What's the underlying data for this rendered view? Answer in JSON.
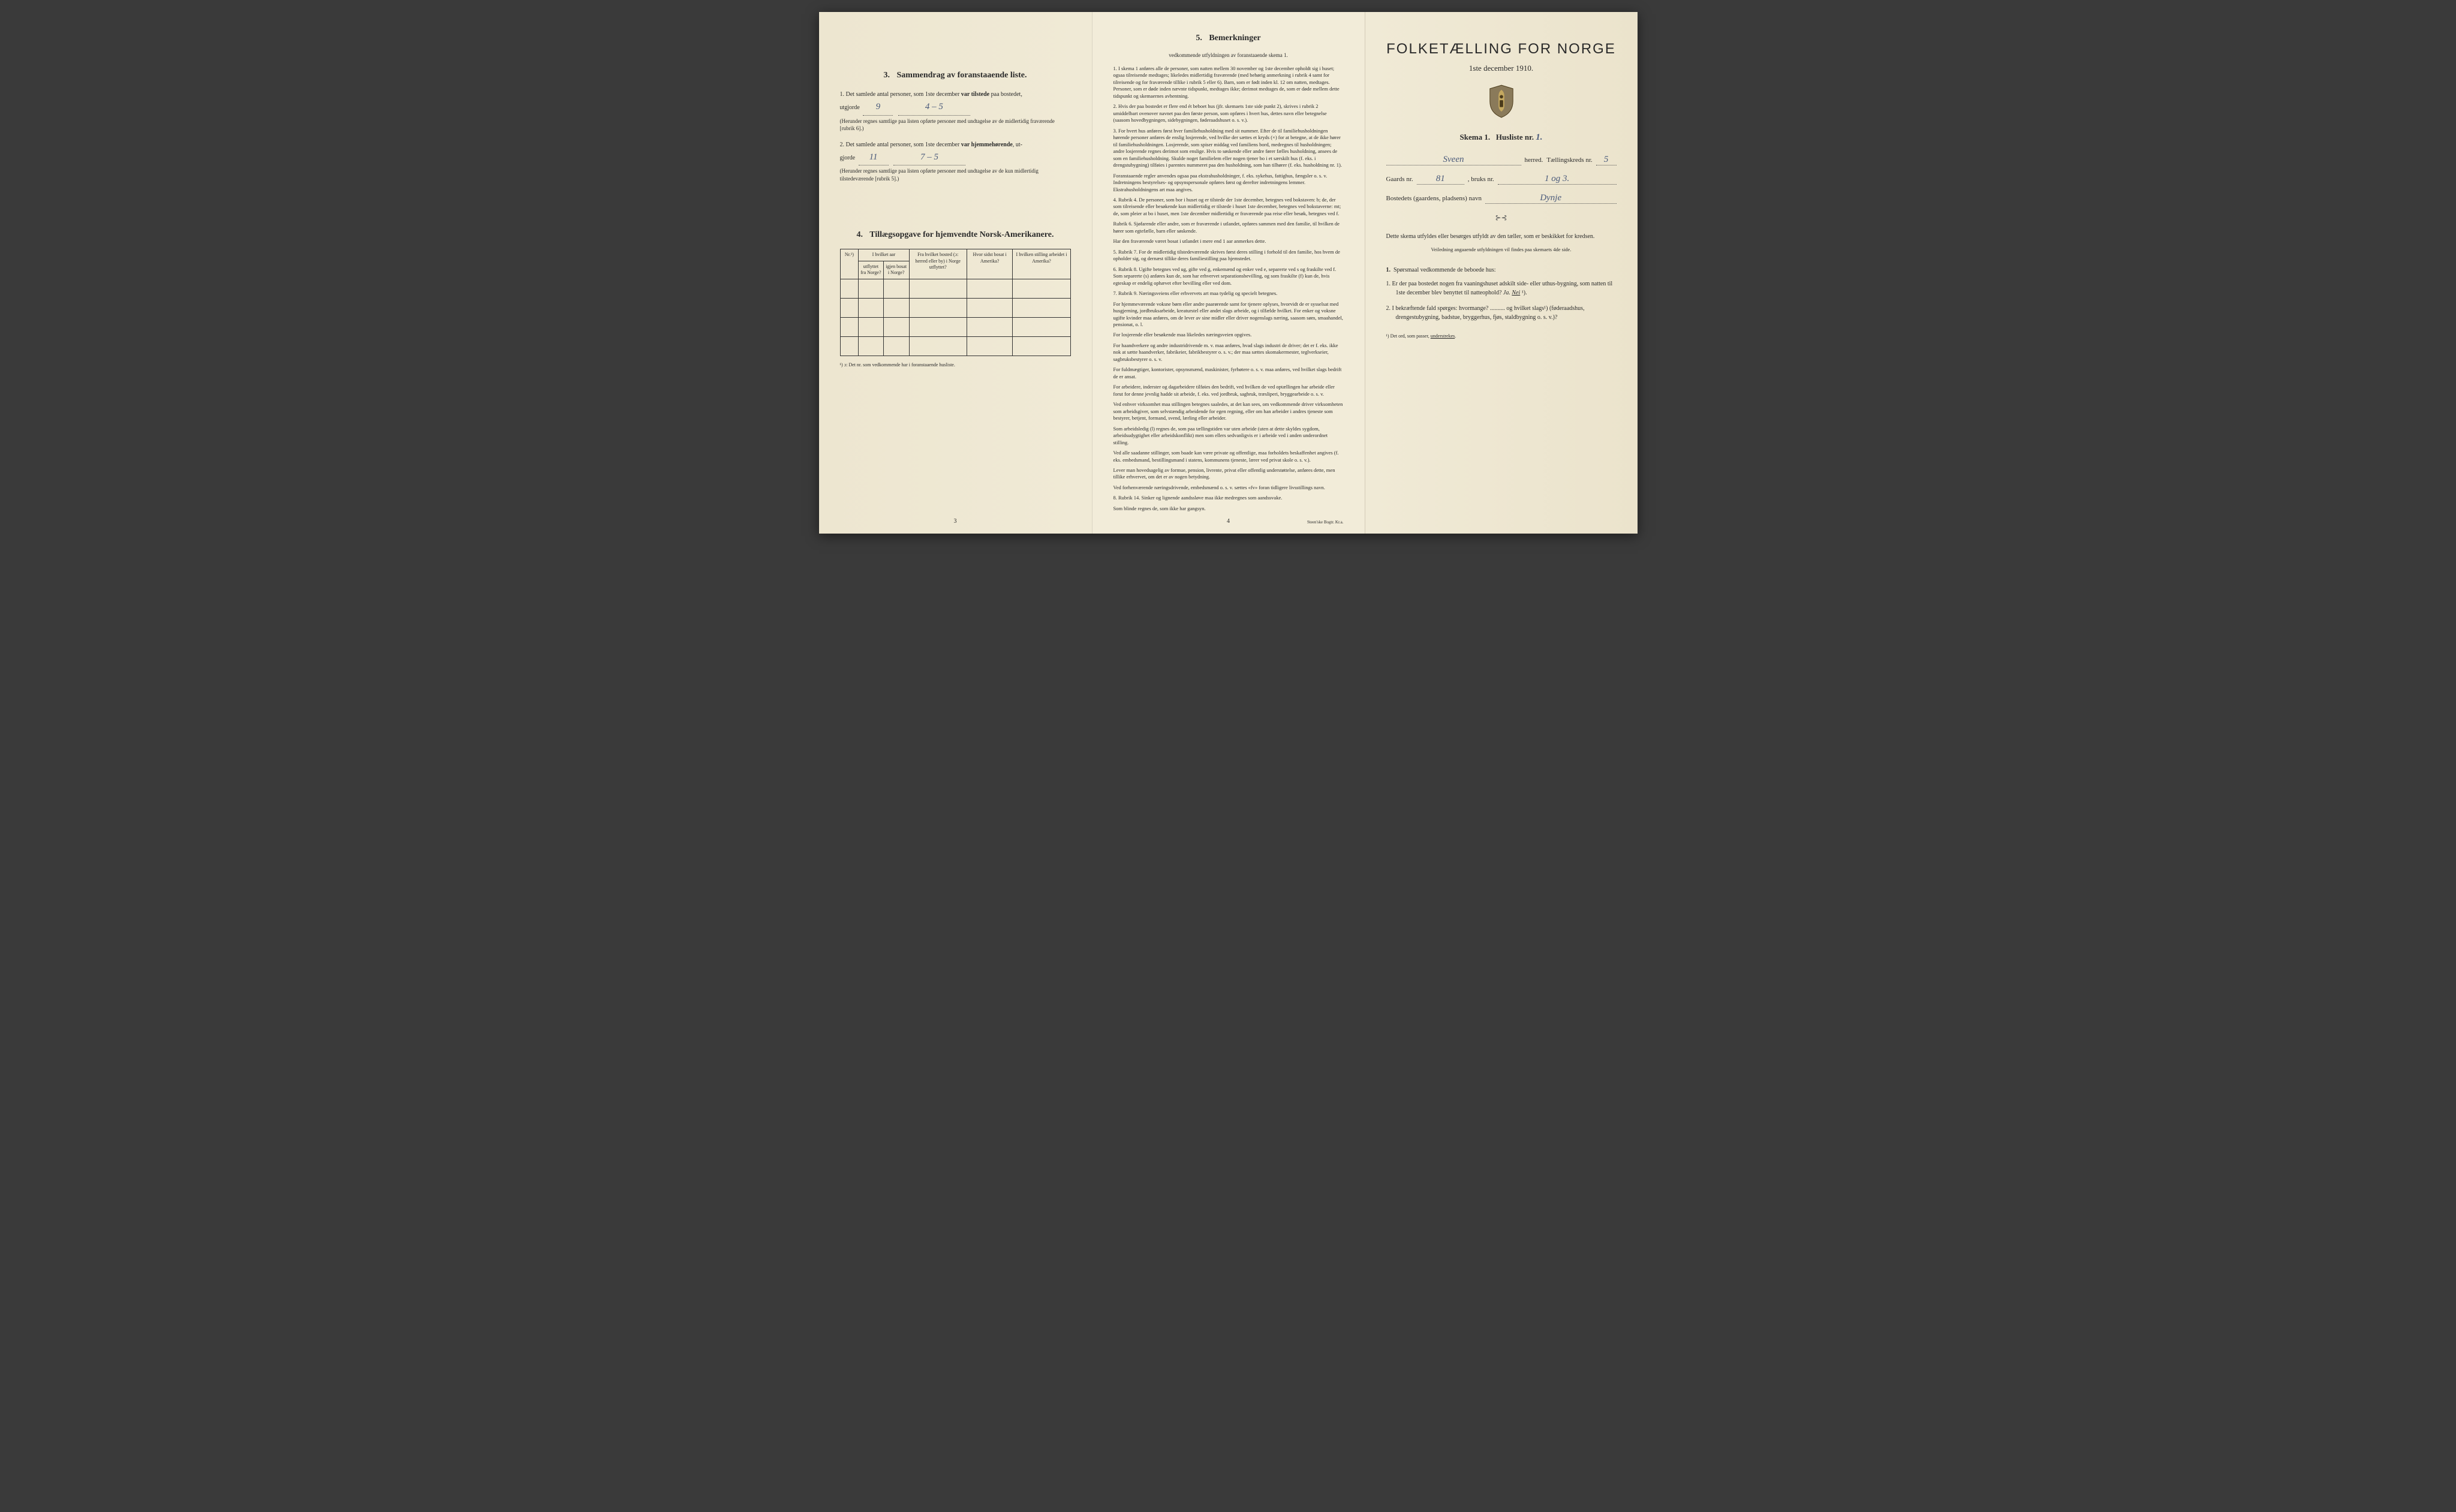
{
  "colors": {
    "paper": "#f0ead6",
    "ink": "#2a2a2a",
    "handwriting": "#4a5a7a",
    "background": "#3a3a3a"
  },
  "page1": {
    "section3": {
      "number": "3.",
      "title": "Sammendrag av foranstaaende liste.",
      "item1_prefix": "1.  Det samlede antal personer, som 1ste december ",
      "item1_bold": "var tilstede",
      "item1_suffix": " paa bostedet,",
      "item1_line2": "utgjorde",
      "item1_hand1": "9",
      "item1_hand2": "4 – 5",
      "item1_paren": "(Herunder regnes samtlige paa listen opførte personer med undtagelse av de midlertidig fraværende [rubrik 6].)",
      "item2_prefix": "2.  Det samlede antal personer, som 1ste december ",
      "item2_bold": "var hjemmehørende",
      "item2_suffix": ", ut-",
      "item2_line2": "gjorde",
      "item2_hand1": "11",
      "item2_hand2": "7 – 5",
      "item2_paren": "(Herunder regnes samtlige paa listen opførte personer med undtagelse av de kun midlertidig tilstedeværende [rubrik 5].)"
    },
    "section4": {
      "number": "4.",
      "title": "Tillægsopgave for hjemvendte Norsk-Amerikanere.",
      "table": {
        "headers": {
          "nr": "Nr.¹)",
          "aar_group": "I hvilket aar",
          "utflyttet": "utflyttet fra Norge?",
          "igjen_bosat": "igjen bosat i Norge?",
          "fra_bosted": "Fra hvilket bosted (ɔ: herred eller by) i Norge utflyttet?",
          "hvor_sidst": "Hvor sidst bosat i Amerika?",
          "stilling": "I hvilken stilling arbeidet i Amerika?"
        },
        "rows": 4
      },
      "footnote": "¹) ɔ: Det nr. som vedkommende har i foranstaaende husliste."
    },
    "page_num": "3"
  },
  "page2": {
    "section5": {
      "number": "5.",
      "title": "Bemerkninger",
      "subtitle": "vedkommende utfyldningen av foranstaaende skema 1."
    },
    "paras": [
      "1.  I skema 1 anføres alle de personer, som natten mellem 30 november og 1ste december opholdt sig i huset; ogsaa tilreisende medtages; likeledes midlertidig fraværende (med behørig anmerkning i rubrik 4 samt for tilreisende og for fraværende tillike i rubrik 5 eller 6). Barn, som er født inden kl. 12 om natten, medtages. Personer, som er døde inden nævnte tidspunkt, medtages ikke; derimot medtages de, som er døde mellem dette tidspunkt og skemaernes avhentning.",
      "2.  Hvis der paa bostedet er flere end ét beboet hus (jfr. skemaets 1ste side punkt 2), skrives i rubrik 2 umiddelbart ovenover navnet paa den første person, som opføres i hvert hus, dettes navn eller betegnelse (saasom hovedbygningen, sidebygningen, føderaadshuset o. s. v.).",
      "3.  For hvert hus anføres først hver familiehusholdning med sit nummer. Efter de til familiehusholdningen hørende personer anføres de enslig losjerende, ved hvilke der sættes et kryds (×) for at betegne, at de ikke hører til familiehusholdningen. Losjerende, som spiser middag ved familiens bord, medregnes til husholdningen; andre losjerende regnes derimot som enslige. Hvis to søskende eller andre fører fælles husholdning, ansees de som en familiehusholdning. Skulde noget familielem eller nogen tjener bo i et særskilt hus (f. eks. i drengstubygning) tilføies i parentes nummeret paa den husholdning, som han tilhører (f. eks. husholdning nr. 1).",
      "     Foranstaaende regler anvendes ogsaa paa ekstrahusholdninger, f. eks. sykehus, fattighus, fængsler o. s. v.  Indretningens bestyrelses- og opsynspersonale opføres først og derefter indretningens lemmer. Ekstrahusholdningens art maa angives.",
      "4.  Rubrik 4. De personer, som bor i huset og er tilstede der 1ste december, betegnes ved bokstaven: b; de, der som tilreisende eller besøkende kun midlertidig er tilstede i huset 1ste december, betegnes ved bokstaverne: mt; de, som pleier at bo i huset, men 1ste december midlertidig er fraværende paa reise eller besøk, betegnes ved f.",
      "     Rubrik 6. Sjøfarende eller andre, som er fraværende i utlandet, opføres sammen med den familie, til hvilken de hører som egtefælle, barn eller søskende.",
      "     Har den fraværende været bosat i utlandet i mere end 1 aar anmerkes dette.",
      "5.  Rubrik 7. For de midlertidig tilstedeværende skrives først deres stilling i forhold til den familie, hos hvem de opholder sig, og dernæst tillike deres familiestilling paa hjemstedet.",
      "6.  Rubrik 8. Ugifte betegnes ved ug, gifte ved g, enkemænd og enker ved e, separerte ved s og fraskilte ved f. Som separerte (s) anføres kun de, som har erhvervet separationsbevilling, og som fraskilte (f) kun de, hvis egteskap er endelig ophævet efter bevilling eller ved dom.",
      "7.  Rubrik 9. Næringsveiens eller erhvervets art maa tydelig og specielt betegnes.",
      "     For hjemmeværende voksne børn eller andre paarørende samt for tjenere oplyses, hvorvidt de er sysselsat med husgjerning, jordbruksarbeide, kreaturstel eller andet slags arbeide, og i tilfælde hvilket. For enker og voksne ugifte kvinder maa anføres, om de lever av sine midler eller driver nogenslags næring, saasom søm, smaahandel, pensionat, o. l.",
      "     For losjerende eller besøkende maa likeledes næringsveien opgives.",
      "     For haandverkere og andre industridrivende m. v. maa anføres, hvad slags industri de driver; det er f. eks. ikke nok at sætte haandverker, fabrikeier, fabrikbestyrer o. s. v.; der maa sættes skomakermester, teglverkseier, sagbruksbestyrer o. s. v.",
      "     For fuldmægtiger, kontorister, opsynsmænd, maskinister, fyrbøtere o. s. v. maa anføres, ved hvilket slags bedrift de er ansat.",
      "     For arbeidere, inderster og dagarbeidere tilføies den bedrift, ved hvilken de ved optællingen har arbeide eller forut for denne jevnlig hadde sit arbeide, f. eks. ved jordbruk, sagbruk, træsliperi, bryggearbeide o. s. v.",
      "     Ved enhver virksomhet maa stillingen betegnes saaledes, at det kan sees, om vedkommende driver virksomheten som arbeidsgiver, som selvstændig arbeidende for egen regning, eller om han arbeider i andres tjeneste som bestyrer, betjent, formand, svend, lærling eller arbeider.",
      "     Som arbeidsledig (l) regnes de, som paa tællingstiden var uten arbeide (uten at dette skyldes sygdom, arbeidsudygtighet eller arbeidskonflikt) men som ellers sedvanligvis er i arbeide ved i anden underordnet stilling.",
      "     Ved alle saadanne stillinger, som baade kan være private og offentlige, maa forholdets beskaffenhet angives (f. eks. embedsmand, bestillingsmand i statens, kommunens tjeneste, lærer ved privat skole o. s. v.).",
      "     Lever man hovedsagelig av formue, pension, livrente, privat eller offentlig understøttelse, anføres dette, men tillike erhvervet, om det er av nogen betydning.",
      "     Ved forhenværende næringsdrivende, embedsmænd o. s. v. sættes «fv» foran tidligere livsstillings navn.",
      "8.  Rubrik 14. Sinker og lignende aandssløve maa ikke medregnes som aandssvake.",
      "     Som blinde regnes de, som ikke har gangsyn."
    ],
    "page_num": "4",
    "printer": "Steen'ske Bogtr.  Kr.a."
  },
  "page3": {
    "main_title": "FOLKETÆLLING FOR NORGE",
    "date_line": "1ste december 1910.",
    "skema_line_a": "Skema 1.",
    "skema_line_b": "Husliste nr.",
    "husliste_nr": "1.",
    "row1_label1": "herred.",
    "row1_hand": "Sveen",
    "row1_label2": "Tællingskreds nr.",
    "row1_val": "5",
    "row2_label1": "Gaards nr.",
    "row2_val1": "81",
    "row2_label2": ", bruks nr.",
    "row2_val2": "1 og 3.",
    "row3_label": "Bostedets (gaardens, pladsens) navn",
    "row3_val": "Dynje",
    "instruct1": "Dette skema utfyldes eller besørges utfyldt av den tæller, som er beskikket for kredsen.",
    "instruct2": "Veiledning angaaende utfyldningen vil findes paa skemaets 4de side.",
    "q_header_num": "1.",
    "q_header": "Spørsmaal vedkommende de beboede hus:",
    "q1": "1.  Er der paa bostedet nogen fra vaaningshuset adskilt side- eller uthus-bygning, som natten til 1ste december blev benyttet til natteophold?   Ja.   Nei ¹).",
    "q2": "2.  I bekræftende fald spørges: hvormange? .......... og hvilket slags¹) (føderaadshus, drengestubygning, badstue, brygger­hus, fjøs, stald­bygning o. s. v.)?",
    "foot": "¹) Det ord, som passer, understrekes."
  }
}
